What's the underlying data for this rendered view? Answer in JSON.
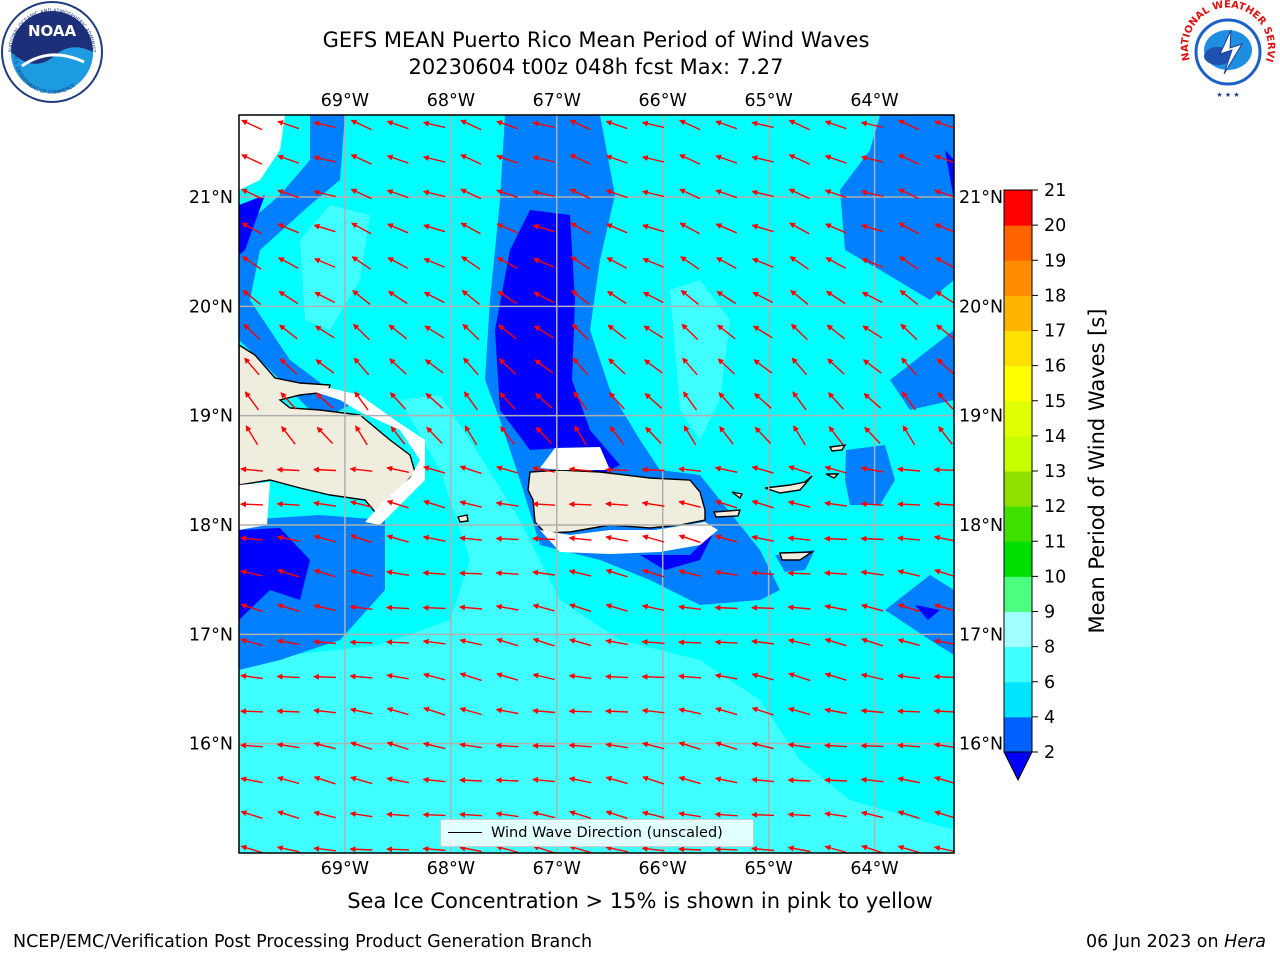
{
  "title": {
    "line1": "GEFS MEAN Puerto Rico Mean Period of Wind Waves",
    "line2": "20230604 t00z 048h fcst   Max: 7.27"
  },
  "caption": "Sea Ice Concentration > 15% is shown in pink to yellow",
  "footer": {
    "left": "NCEP/EMC/Verification Post Processing Product Generation Branch",
    "date": "06 Jun 2023 on ",
    "machine": "Hera"
  },
  "legend": {
    "label": "Wind Wave Direction (unscaled)"
  },
  "logos": {
    "noaa": {
      "text": "NOAA",
      "ring_top": "NATIONAL OCEANIC AND ATMOSPHERIC ADMINISTRATION",
      "ring_bottom": "U.S. DEPARTMENT OF COMMERCE"
    },
    "nws": {
      "ring_text": "NATIONAL WEATHER SERVICE"
    }
  },
  "map": {
    "lon_labels": [
      "69°W",
      "68°W",
      "67°W",
      "66°W",
      "65°W",
      "64°W"
    ],
    "lat_labels": [
      "21°N",
      "20°N",
      "19°N",
      "18°N",
      "17°N",
      "16°N"
    ],
    "lon_values": [
      -69,
      -68,
      -67,
      -66,
      -65,
      -64
    ],
    "lat_values": [
      21,
      20,
      19,
      18,
      17,
      16
    ],
    "lon_range": [
      -70.0,
      -63.25
    ],
    "lat_range": [
      15.0,
      21.75
    ],
    "grid": true,
    "land_color": "#efedde",
    "ocean_base_color": "#00ffff",
    "arrow_color": "#ff0000"
  },
  "colorbar": {
    "title": "Mean Period of Wind Waves [s]",
    "ticks": [
      "2",
      "4",
      "6",
      "8",
      "9",
      "10",
      "11",
      "12",
      "13",
      "14",
      "15",
      "16",
      "17",
      "18",
      "19",
      "20",
      "21"
    ],
    "colors": [
      "#0060ff",
      "#00e5ff",
      "#40ffff",
      "#a0ffff",
      "#4cff80",
      "#00e000",
      "#40e000",
      "#90e000",
      "#c8ff00",
      "#e0ff00",
      "#ffff00",
      "#ffe000",
      "#ffb400",
      "#ff8c00",
      "#ff6400",
      "#ff3c00"
    ],
    "extend_color": "#0000ff",
    "top_color": "#ff0000"
  }
}
